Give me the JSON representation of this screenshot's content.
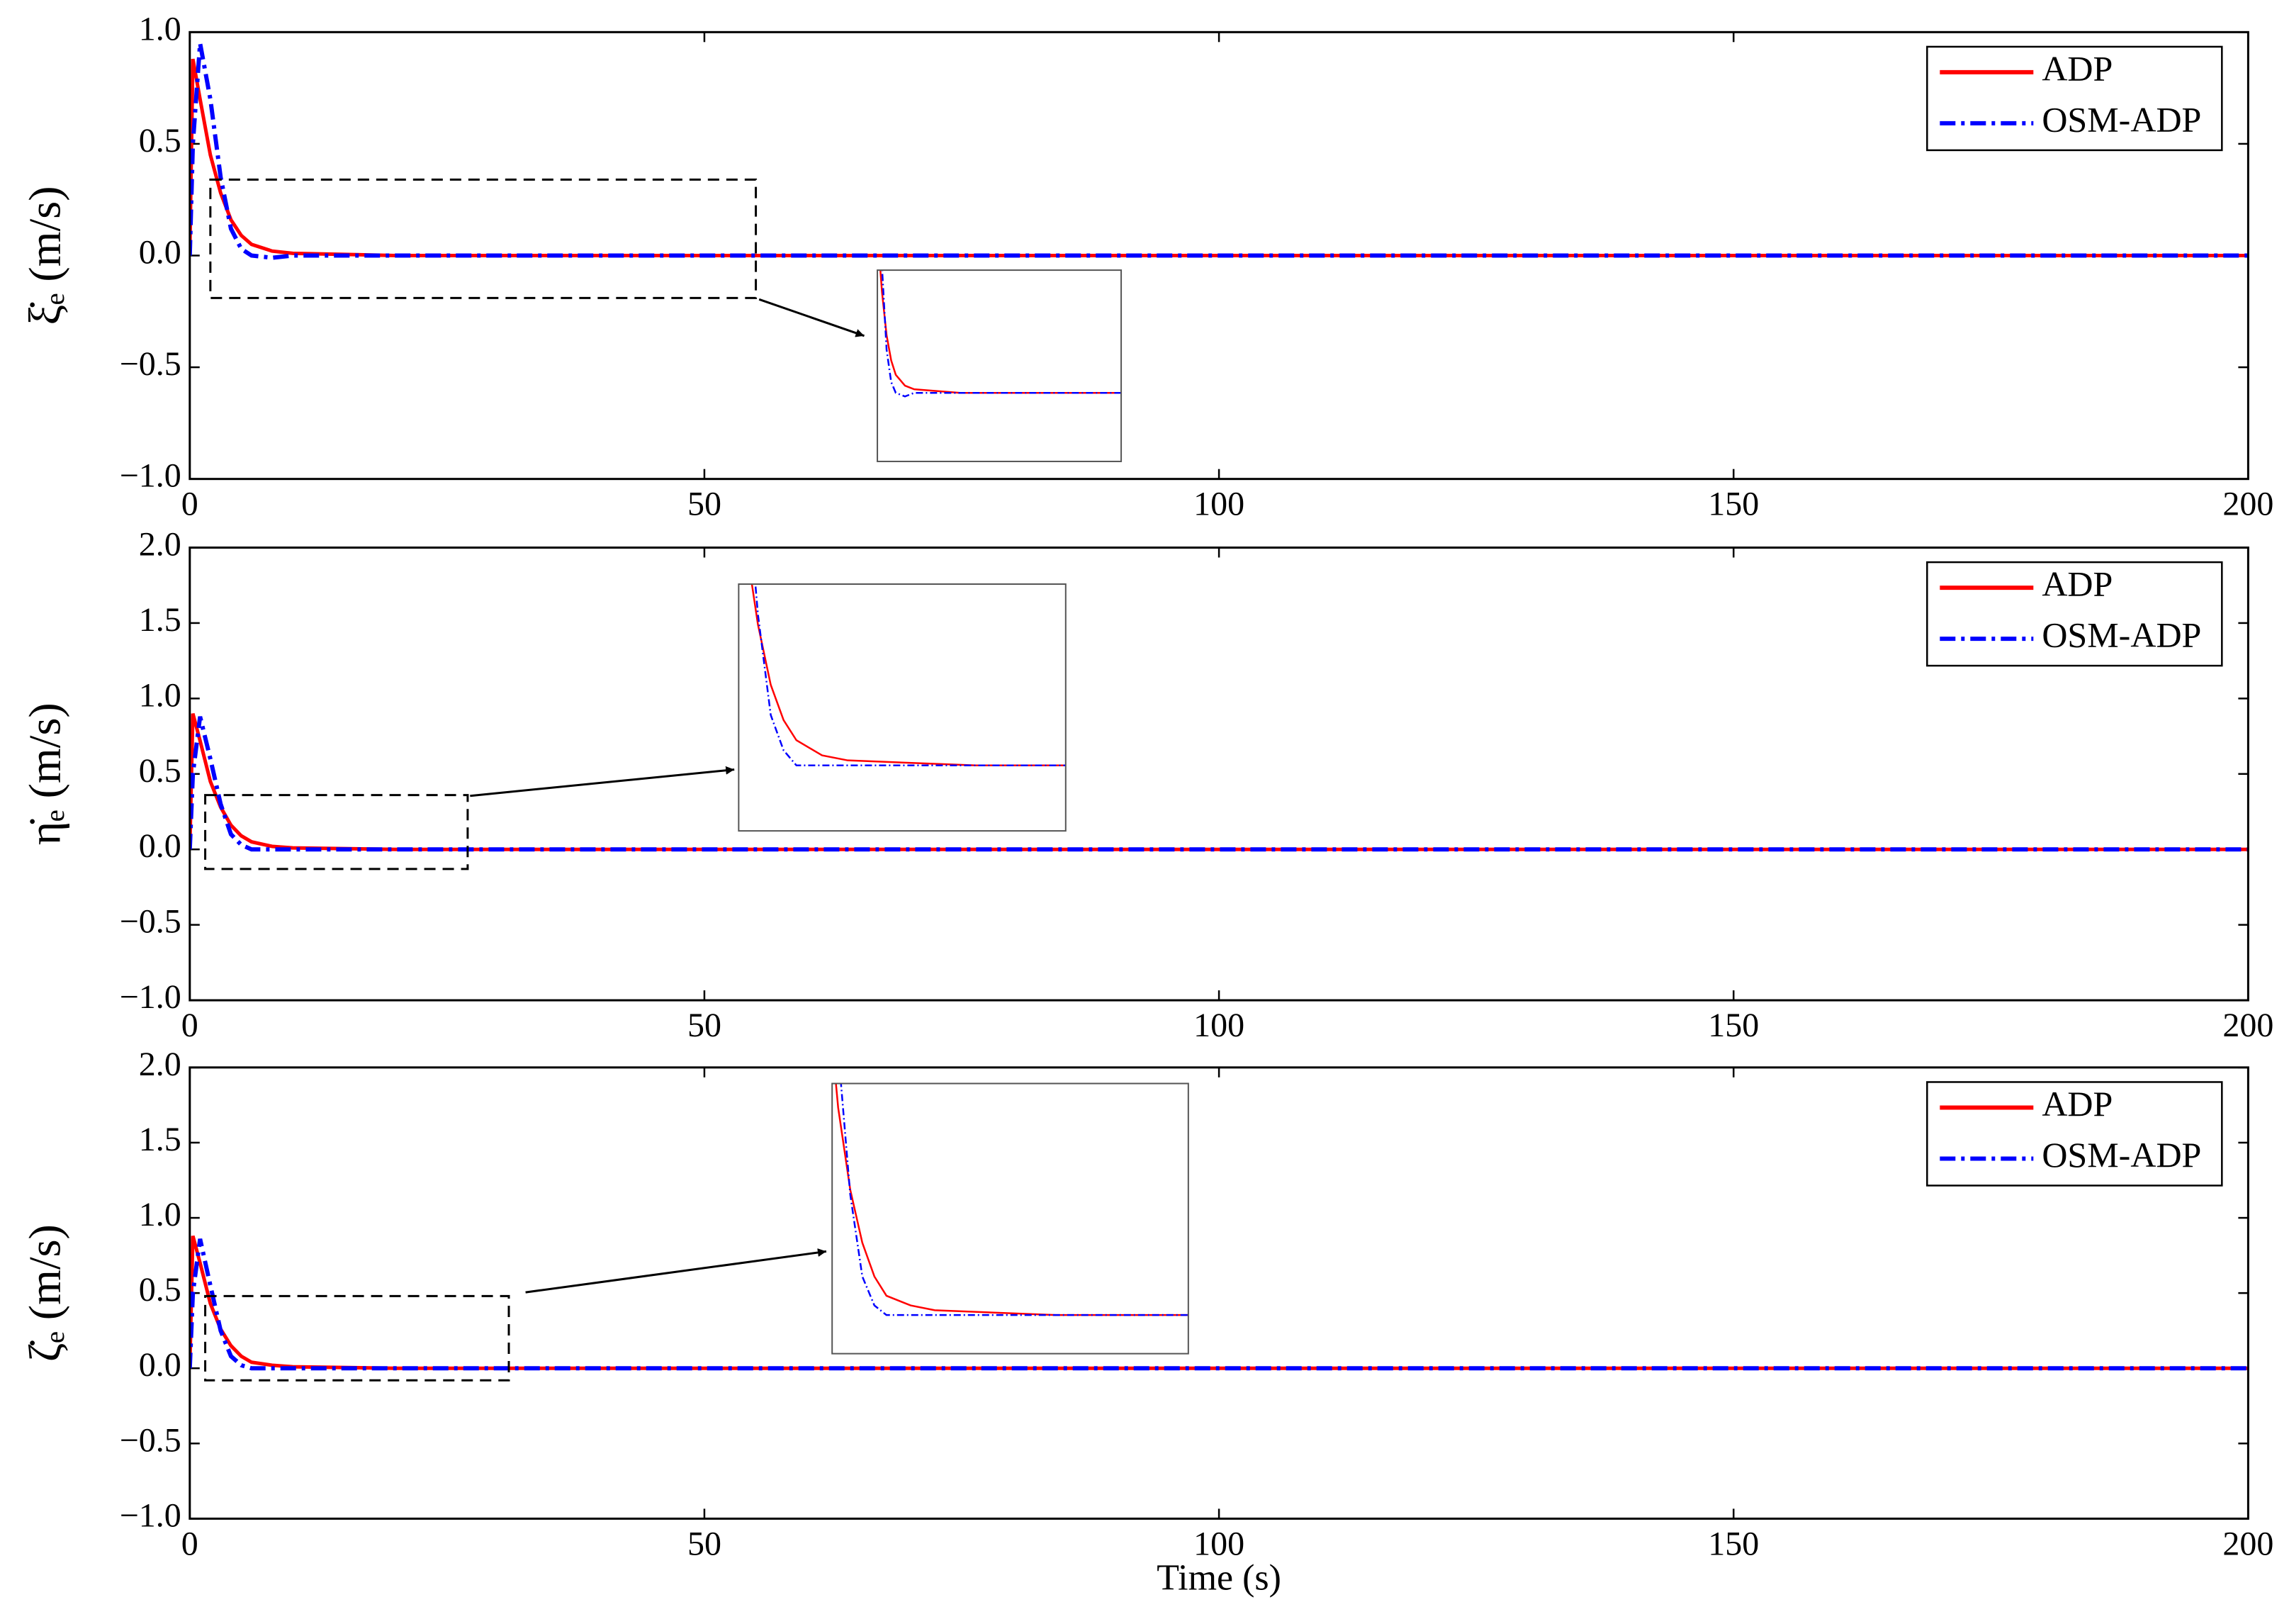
{
  "chart_data": [
    {
      "type": "line",
      "ylabel": "ξ̇ₑ (m/s)",
      "x": [
        0,
        0.3,
        1,
        2,
        3,
        4,
        5,
        6,
        8,
        10,
        20,
        50,
        100,
        150,
        200
      ],
      "series": [
        {
          "name": "ADP",
          "color": "#ff0000",
          "values": [
            0,
            0.88,
            0.7,
            0.45,
            0.28,
            0.16,
            0.09,
            0.05,
            0.02,
            0.01,
            0,
            0,
            0,
            0,
            0
          ]
        },
        {
          "name": "OSM-ADP",
          "color": "#0000ff",
          "values": [
            0,
            0.5,
            0.95,
            0.7,
            0.35,
            0.12,
            0.03,
            0,
            -0.01,
            0,
            0,
            0,
            0,
            0,
            0
          ]
        }
      ],
      "xlim": [
        0,
        200
      ],
      "xticks": [
        0,
        50,
        100,
        150,
        200
      ],
      "ylim": [
        -1,
        1
      ],
      "yticks": [
        {
          "value": -1,
          "label": "−1.0"
        },
        {
          "value": -0.5,
          "label": "−0.5"
        },
        {
          "value": 0,
          "label": "0.0"
        },
        {
          "value": 0.5,
          "label": "0.5"
        },
        {
          "value": 1,
          "label": "1.0"
        }
      ],
      "legend": "upper right"
    },
    {
      "type": "line",
      "ylabel": "η̇ₑ (m/s)",
      "x": [
        0,
        0.3,
        1,
        2,
        3,
        4,
        5,
        6,
        8,
        10,
        20,
        50,
        100,
        150,
        200
      ],
      "series": [
        {
          "name": "ADP",
          "color": "#ff0000",
          "values": [
            0,
            0.9,
            0.72,
            0.45,
            0.28,
            0.16,
            0.09,
            0.05,
            0.02,
            0.01,
            0,
            0,
            0,
            0,
            0
          ]
        },
        {
          "name": "OSM-ADP",
          "color": "#0000ff",
          "values": [
            0,
            0.5,
            0.88,
            0.6,
            0.3,
            0.1,
            0.03,
            0,
            0,
            0,
            0,
            0,
            0,
            0,
            0
          ]
        }
      ],
      "xlim": [
        0,
        200
      ],
      "xticks": [
        0,
        50,
        100,
        150,
        200
      ],
      "ylim": [
        -1,
        2
      ],
      "yticks": [
        {
          "value": -1,
          "label": "−1.0"
        },
        {
          "value": -0.5,
          "label": "−0.5"
        },
        {
          "value": 0,
          "label": "0.0"
        },
        {
          "value": 0.5,
          "label": "0.5"
        },
        {
          "value": 1,
          "label": "1.0"
        },
        {
          "value": 1.5,
          "label": "1.5"
        },
        {
          "value": 2,
          "label": "2.0"
        }
      ],
      "legend": "upper right"
    },
    {
      "type": "line",
      "ylabel": "ζ̇ₑ (m/s)",
      "xlabel": "Time (s)",
      "x": [
        0,
        0.3,
        1,
        2,
        3,
        4,
        5,
        6,
        8,
        10,
        20,
        50,
        100,
        150,
        200
      ],
      "series": [
        {
          "name": "ADP",
          "color": "#ff0000",
          "values": [
            0,
            0.88,
            0.7,
            0.43,
            0.26,
            0.15,
            0.08,
            0.04,
            0.02,
            0.01,
            0,
            0,
            0,
            0,
            0
          ]
        },
        {
          "name": "OSM-ADP",
          "color": "#0000ff",
          "values": [
            0,
            0.5,
            0.86,
            0.55,
            0.25,
            0.08,
            0.02,
            0,
            0,
            0,
            0,
            0,
            0,
            0,
            0
          ]
        }
      ],
      "xlim": [
        0,
        200
      ],
      "xticks": [
        0,
        50,
        100,
        150,
        200
      ],
      "ylim": [
        -1,
        2
      ],
      "yticks": [
        {
          "value": -1,
          "label": "−1.0"
        },
        {
          "value": -0.5,
          "label": "−0.5"
        },
        {
          "value": 0,
          "label": "0.0"
        },
        {
          "value": 0.5,
          "label": "0.5"
        },
        {
          "value": 1,
          "label": "1.0"
        },
        {
          "value": 1.5,
          "label": "1.5"
        },
        {
          "value": 2,
          "label": "2.0"
        }
      ],
      "legend": "upper right"
    }
  ]
}
